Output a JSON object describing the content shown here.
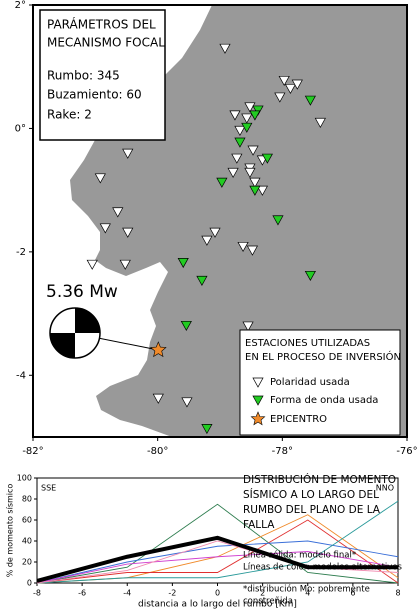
{
  "map": {
    "xlim": [
      -82,
      -76
    ],
    "ylim": [
      -5,
      2
    ],
    "xticks": [
      {
        "value": -82,
        "label": "-82°"
      },
      {
        "value": -80,
        "label": "-80°"
      },
      {
        "value": -78,
        "label": "-78°"
      },
      {
        "value": -76,
        "label": "-76°"
      }
    ],
    "yticks": [
      {
        "value": 2,
        "label": "2°"
      },
      {
        "value": 0,
        "label": "0°"
      },
      {
        "value": -2,
        "label": "-2"
      },
      {
        "value": -4,
        "label": "-4"
      }
    ],
    "params_box": [
      "PARÁMETROS DEL",
      "MECANISMO FOCAL",
      "Rumbo: 345",
      "Buzamiento: 60",
      "Rake: 2"
    ],
    "magnitude": "5.36 Mw",
    "legend": {
      "title": [
        "ESTACIONES UTILIZADAS",
        "EN EL PROCESO DE INVERSIÓN"
      ],
      "polarity": "Polaridad usada",
      "waveform": "Forma de onda usada",
      "epicenter": "EPICENTRO"
    },
    "polarity_color": "#ffffff",
    "waveform_color": "#22cc22",
    "epicenter_color": "#f08a2a",
    "land_color": "#999999",
    "stations_polarity": [
      [
        -78.92,
        1.3
      ],
      [
        -77.97,
        0.78
      ],
      [
        -77.87,
        0.65
      ],
      [
        -77.76,
        0.72
      ],
      [
        -78.04,
        0.51
      ],
      [
        -78.52,
        0.35
      ],
      [
        -78.76,
        0.22
      ],
      [
        -78.57,
        0.17
      ],
      [
        -77.39,
        0.1
      ],
      [
        -78.68,
        -0.03
      ],
      [
        -80.48,
        -0.4
      ],
      [
        -80.92,
        -0.8
      ],
      [
        -78.47,
        -0.35
      ],
      [
        -78.73,
        -0.48
      ],
      [
        -78.52,
        -0.64
      ],
      [
        -78.32,
        -0.51
      ],
      [
        -78.79,
        -0.71
      ],
      [
        -78.52,
        -0.71
      ],
      [
        -78.44,
        -0.87
      ],
      [
        -78.32,
        -1.0
      ],
      [
        -80.64,
        -1.35
      ],
      [
        -80.84,
        -1.61
      ],
      [
        -80.48,
        -1.68
      ],
      [
        -79.08,
        -1.68
      ],
      [
        -79.21,
        -1.81
      ],
      [
        -78.63,
        -1.91
      ],
      [
        -78.48,
        -1.97
      ],
      [
        -80.52,
        -2.2
      ],
      [
        -81.05,
        -2.2
      ],
      [
        -78.55,
        -3.2
      ],
      [
        -79.99,
        -4.37
      ],
      [
        -79.53,
        -4.43
      ]
    ],
    "stations_waveform": [
      [
        -77.55,
        0.46
      ],
      [
        -78.39,
        0.3
      ],
      [
        -78.44,
        0.22
      ],
      [
        -78.57,
        0.02
      ],
      [
        -78.68,
        -0.22
      ],
      [
        -78.24,
        -0.48
      ],
      [
        -78.97,
        -0.87
      ],
      [
        -78.44,
        -1.0
      ],
      [
        -78.07,
        -1.48
      ],
      [
        -79.59,
        -2.17
      ],
      [
        -79.29,
        -2.46
      ],
      [
        -77.55,
        -2.38
      ],
      [
        -79.54,
        -3.19
      ],
      [
        -79.21,
        -4.86
      ]
    ],
    "epicenter": [
      -79.99,
      -3.59
    ]
  },
  "chart_data": {
    "type": "line",
    "ylabel": "% de momento sísmico",
    "xlabel": "distancia a lo largo del rumbo [Km]",
    "annotations": [
      "SSE",
      "NNO"
    ],
    "x": [
      -8,
      -4,
      0,
      4,
      8
    ],
    "series": [
      {
        "color": "#2e7d4f",
        "values": [
          0,
          15,
          75,
          10,
          0
        ]
      },
      {
        "color": "#f08a2a",
        "values": [
          0,
          5,
          25,
          65,
          5
        ]
      },
      {
        "color": "#e03030",
        "values": [
          0,
          10,
          10,
          60,
          0
        ]
      },
      {
        "color": "#3a6fd8",
        "values": [
          0,
          20,
          35,
          40,
          25
        ]
      },
      {
        "color": "#d040d0",
        "values": [
          0,
          18,
          25,
          30,
          15
        ]
      },
      {
        "color": "#2a9a9a",
        "values": [
          0,
          5,
          5,
          20,
          78
        ]
      },
      {
        "color": "#f08ab0",
        "values": [
          0,
          12,
          40,
          15,
          10
        ]
      },
      {
        "color": "#000000",
        "values": [
          2,
          25,
          43,
          15,
          15
        ]
      }
    ],
    "xlim": [
      -8,
      8
    ],
    "xticks": [
      -8,
      -6,
      -4,
      -2,
      0,
      2,
      4,
      6,
      8
    ],
    "ylim": [
      0,
      100
    ],
    "yticks": [
      0,
      20,
      40,
      60,
      80,
      100
    ]
  },
  "caption": {
    "title": [
      "DISTRIBUCIÓN DE MOMENTO",
      "SÍSMICO A LO LARGO DEL",
      "RUMBO DEL PLANO DE LA",
      "FALLA"
    ],
    "notes": [
      "Línea sólida: modelo final*",
      "Líneas de color: modelos alternativos"
    ],
    "footnote": [
      "*distribución Mo: pobremente",
      "constreñida"
    ]
  }
}
